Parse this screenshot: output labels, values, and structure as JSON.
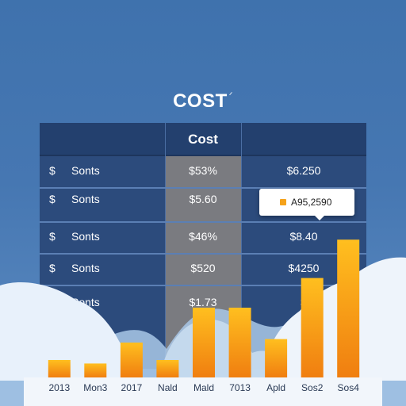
{
  "title": "COST",
  "title_sup": "ᐟ",
  "table": {
    "header_mid": "Cost",
    "rows": [
      {
        "currency": "$",
        "label": "Sonts",
        "value1": "$53%",
        "value2": "$6.250"
      },
      {
        "currency": "$",
        "label": "Sonts",
        "value1": "$5.60",
        "value2": ""
      },
      {
        "currency": "$",
        "label": "Sonts",
        "value1": "$46%",
        "value2": "$8.40"
      },
      {
        "currency": "$",
        "label": "Sonts",
        "value1": "$520",
        "value2": "$4250"
      },
      {
        "currency": "$",
        "label": "Sonts",
        "value1": "$1.73",
        "value2": "$"
      }
    ]
  },
  "tooltip": {
    "text": "A95,2590"
  },
  "colors": {
    "bar_top": "#ffbf1f",
    "bar_bottom": "#f07e10",
    "background": "#4677b2",
    "table": "#2c4b7c"
  },
  "chart_data": {
    "type": "bar",
    "categories": [
      "2013",
      "Mon3",
      "2017",
      "Nald",
      "Mald",
      "7013",
      "Apld",
      "Sos2",
      "Sos4"
    ],
    "values": [
      10,
      8,
      20,
      10,
      40,
      40,
      22,
      57,
      79
    ],
    "ylim": [
      0,
      100
    ],
    "grid": false,
    "legend": "none"
  }
}
